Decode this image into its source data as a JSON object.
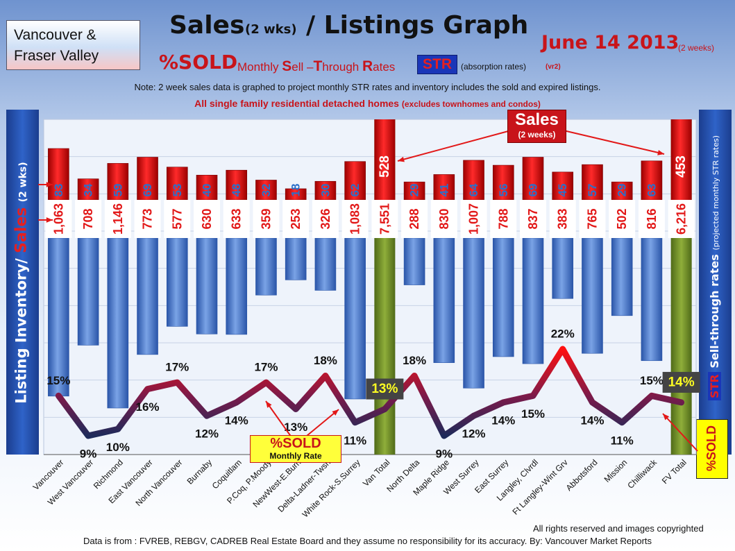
{
  "region_label": [
    "Vancouver &",
    "Fraser Valley"
  ],
  "title": {
    "part1": "Sales",
    "part2": "(2 wks)",
    "part3": "/ Listings Graph"
  },
  "date": {
    "main": "June 14 2013",
    "sub": "(2 weeks)"
  },
  "subtitle": {
    "sold": "%SOLD",
    "monthly": "Monthly",
    "s": "S",
    "ell": "ell –",
    "t": "T",
    "hrough": "hrough",
    "r": "R",
    "ates": "ates",
    "str_badge": "STR",
    "absorption": "(absorption rates)",
    "version": "(vr2)"
  },
  "note": "Note: 2 week sales data is graphed to project monthly STR rates and inventory includes the sold and expired listings.",
  "scope": {
    "main": "All single family residential detached homes",
    "detail": "(excludes townhomes and condos)"
  },
  "left_axis_title": {
    "listing": "Listing Inventory",
    "slash": "/",
    "sales": "Sales",
    "weeks": "(2 wks)"
  },
  "right_axis_title": {
    "str": "STR",
    "sell": "Sell-through rates",
    "projected": "(projected monthly STR rates)"
  },
  "sold_box_label": "%SOLD",
  "legend_sold": {
    "line1": "%SOLD",
    "line2": "Monthly Rate"
  },
  "sales_callout": {
    "line1": "Sales",
    "line2": "(2 weeks)"
  },
  "copyright": "All rights reserved and  images copyrighted",
  "source": "Data is  from : FVREB, REBGV, CADREB Real Estate Board and they assume no responsibility  for its accuracy. By: Vancouver Market Reports",
  "colors": {
    "inventory": "#5b8ad8",
    "inventory_dark": "#2a55a8",
    "sales": "#e21818",
    "total": "#7a9a2e",
    "label_bg": "#ffffff",
    "label_text": "#e21818",
    "sales_text": "#2a6fc9"
  },
  "chart_data": {
    "type": "bar",
    "categories": [
      "Vancouver",
      "West Vancouver",
      "Richmond",
      "East Vancouver",
      "North Vancouver",
      "Burnaby",
      "Coquitlam",
      "P.Coq, P.Moody",
      "NewWest-E.Burn",
      "Delta-Ladner-Twsn",
      "White Rock-S.Surrey",
      "Van Total",
      "North Delta",
      "Maple Ridge",
      "West Surrey",
      "East Surrey",
      "Langley, Clvrdl",
      "Ft Langley-Wint Grv",
      "Abbotsford",
      "Mission",
      "Chilliwack",
      "FV Total"
    ],
    "series": [
      {
        "name": "Listing Inventory",
        "values": [
          1063,
          708,
          1146,
          773,
          577,
          630,
          633,
          359,
          253,
          326,
          1083,
          7551,
          288,
          830,
          1007,
          788,
          837,
          383,
          765,
          502,
          816,
          6216
        ]
      },
      {
        "name": "Sales",
        "values": [
          83,
          34,
          59,
          69,
          53,
          40,
          48,
          32,
          18,
          30,
          62,
          528,
          29,
          41,
          64,
          56,
          69,
          45,
          57,
          29,
          63,
          453
        ]
      },
      {
        "name": "%SOLD Monthly Rate",
        "values": [
          15,
          9,
          10,
          16,
          17,
          12,
          14,
          17,
          13,
          18,
          11,
          13,
          18,
          9,
          12,
          14,
          15,
          22,
          14,
          11,
          15,
          14
        ]
      }
    ],
    "inventory_labels": [
      "1,063",
      "708",
      "1,146",
      "773",
      "577",
      "630",
      "633",
      "359",
      "253",
      "326",
      "1,083",
      "7,551",
      "288",
      "830",
      "1,007",
      "788",
      "837",
      "383",
      "765",
      "502",
      "816",
      "6,216"
    ],
    "str_labels": [
      "15%",
      "9%",
      "10%",
      "16%",
      "17%",
      "12%",
      "14%",
      "17%",
      "13%",
      "18%",
      "11%",
      "13%",
      "18%",
      "9%",
      "12%",
      "14%",
      "15%",
      "22%",
      "14%",
      "11%",
      "15%",
      "14%"
    ],
    "total_categories": [
      "Van Total",
      "FV Total"
    ],
    "grid": true
  }
}
